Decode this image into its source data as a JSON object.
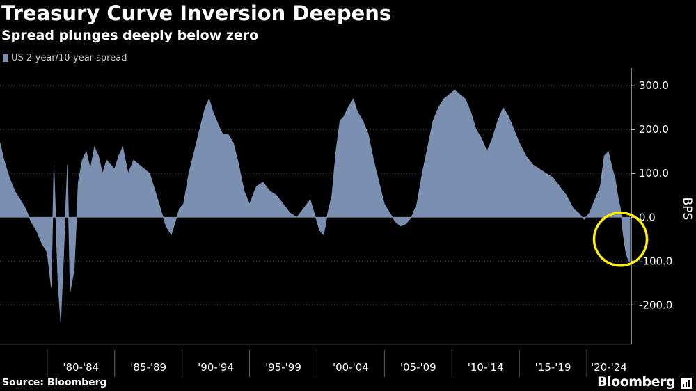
{
  "title": "Treasury Curve Inversion Deepens",
  "subtitle": "Spread plunges deeply below zero",
  "source": "Source: Bloomberg",
  "brand": "Bloomberg",
  "colors": {
    "series": "#7B8FB0",
    "highlight": "#FFF000",
    "grid": "#555555",
    "axis": "#FFFFFF",
    "background": "#000000"
  },
  "chart_data": {
    "type": "area",
    "title": "Treasury Curve Inversion Deepens",
    "subtitle": "Spread plunges deeply below zero",
    "ylabel": "BPS",
    "xlabel": "",
    "ylim": [
      -290,
      340
    ],
    "xlim": [
      1976.5,
      2023.3
    ],
    "yticks": [
      300,
      200,
      100,
      0,
      -100,
      -200
    ],
    "ytick_labels": [
      "300.0",
      "200.0",
      "100.0",
      "0.0",
      "-100.0",
      "-200.0"
    ],
    "period_labels": [
      "'80-'84",
      "'85-'89",
      "'90-'94",
      "'95-'99",
      "'00-'04",
      "'05-'09",
      "'10-'14",
      "'15-'19",
      "'20-'24"
    ],
    "period_starts": [
      1980,
      1985,
      1990,
      1995,
      2000,
      2005,
      2010,
      2015,
      2020
    ],
    "legend": [
      "US 2-year/10-year spread"
    ],
    "annotation": "circle around latest inversion",
    "annotation_center": [
      2022.5,
      -50
    ],
    "series": [
      {
        "name": "US 2-year/10-year spread",
        "x": [
          1976.5,
          1976.8,
          1977.2,
          1977.6,
          1978.0,
          1978.4,
          1978.8,
          1979.2,
          1979.6,
          1980.0,
          1980.3,
          1980.5,
          1980.8,
          1981.0,
          1981.2,
          1981.5,
          1981.7,
          1982.0,
          1982.3,
          1982.6,
          1982.9,
          1983.2,
          1983.5,
          1983.8,
          1984.1,
          1984.4,
          1984.7,
          1985.0,
          1985.3,
          1985.6,
          1986.0,
          1986.4,
          1986.8,
          1987.2,
          1987.6,
          1988.0,
          1988.4,
          1988.8,
          1989.2,
          1989.5,
          1989.8,
          1990.1,
          1990.5,
          1990.9,
          1991.3,
          1991.7,
          1992.0,
          1992.3,
          1992.7,
          1993.0,
          1993.4,
          1993.8,
          1994.2,
          1994.6,
          1995.0,
          1995.5,
          1996.0,
          1996.5,
          1997.0,
          1997.5,
          1998.0,
          1998.5,
          1999.0,
          1999.5,
          2000.0,
          2000.2,
          2000.5,
          2000.8,
          2001.1,
          2001.4,
          2001.7,
          2002.0,
          2002.3,
          2002.7,
          2003.0,
          2003.4,
          2003.8,
          2004.2,
          2004.6,
          2005.0,
          2005.4,
          2005.8,
          2006.2,
          2006.6,
          2007.0,
          2007.4,
          2007.8,
          2008.2,
          2008.6,
          2009.0,
          2009.4,
          2009.8,
          2010.2,
          2010.6,
          2011.0,
          2011.4,
          2011.8,
          2012.2,
          2012.6,
          2013.0,
          2013.4,
          2013.8,
          2014.2,
          2014.6,
          2015.0,
          2015.5,
          2016.0,
          2016.5,
          2017.0,
          2017.5,
          2018.0,
          2018.5,
          2019.0,
          2019.4,
          2019.8,
          2020.2,
          2020.6,
          2021.0,
          2021.3,
          2021.6,
          2021.9,
          2022.1,
          2022.3,
          2022.5,
          2022.7,
          2022.9,
          2023.1,
          2023.2
        ],
        "values": [
          170,
          130,
          90,
          60,
          40,
          20,
          -10,
          -30,
          -60,
          -80,
          -160,
          120,
          -150,
          -240,
          -100,
          120,
          -170,
          -120,
          80,
          130,
          150,
          110,
          160,
          140,
          100,
          130,
          120,
          110,
          140,
          160,
          100,
          130,
          120,
          110,
          100,
          60,
          20,
          -20,
          -40,
          -10,
          20,
          30,
          100,
          150,
          200,
          250,
          270,
          240,
          210,
          190,
          190,
          170,
          120,
          60,
          30,
          70,
          80,
          60,
          50,
          30,
          10,
          0,
          20,
          40,
          -10,
          -30,
          -40,
          10,
          50,
          150,
          220,
          230,
          250,
          270,
          240,
          220,
          190,
          130,
          80,
          30,
          10,
          -10,
          -20,
          -15,
          0,
          30,
          100,
          160,
          220,
          250,
          270,
          280,
          290,
          280,
          270,
          240,
          200,
          180,
          150,
          180,
          220,
          250,
          230,
          200,
          170,
          140,
          120,
          110,
          100,
          90,
          70,
          50,
          20,
          10,
          -5,
          10,
          40,
          70,
          140,
          150,
          110,
          90,
          50,
          20,
          -40,
          -80,
          -100,
          -100
        ]
      }
    ]
  }
}
